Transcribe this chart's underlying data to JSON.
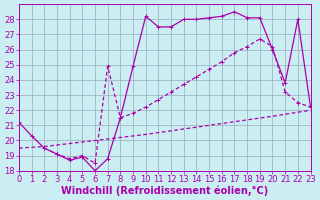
{
  "bg_color": "#cbeef3",
  "line_color": "#aa00aa",
  "grid_color": "#99aabb",
  "xlabel": "Windchill (Refroidissement éolien,°C)",
  "xlim": [
    0,
    23
  ],
  "ylim": [
    18,
    29
  ],
  "yticks": [
    18,
    19,
    20,
    21,
    22,
    23,
    24,
    25,
    26,
    27,
    28
  ],
  "xticks": [
    0,
    1,
    2,
    3,
    4,
    5,
    6,
    7,
    8,
    9,
    10,
    11,
    12,
    13,
    14,
    15,
    16,
    17,
    18,
    19,
    20,
    21,
    22,
    23
  ],
  "line1_x": [
    0,
    1,
    2,
    3,
    4,
    5,
    6,
    7,
    8,
    9,
    10,
    11,
    12,
    13,
    14,
    15,
    16,
    17,
    18,
    19,
    20,
    21,
    22,
    23
  ],
  "line1_y": [
    21.2,
    20.3,
    19.5,
    19.1,
    18.7,
    18.9,
    18.0,
    18.8,
    21.5,
    24.9,
    28.2,
    27.5,
    27.5,
    28.0,
    28.0,
    28.1,
    28.2,
    28.5,
    28.1,
    28.1,
    26.0,
    23.8,
    28.0,
    22.2
  ],
  "line2_x": [
    2,
    3,
    4,
    5,
    6,
    7,
    8,
    9,
    10,
    11,
    12,
    13,
    14,
    15,
    16,
    17,
    18,
    19,
    20,
    21,
    22,
    23
  ],
  "line2_y": [
    19.5,
    19.1,
    18.8,
    19.0,
    18.5,
    24.9,
    21.5,
    21.8,
    22.2,
    22.7,
    23.2,
    23.7,
    24.2,
    24.7,
    25.2,
    25.8,
    26.2,
    26.7,
    26.2,
    23.2,
    22.5,
    22.2
  ],
  "line3_x": [
    0,
    2,
    5,
    10,
    15,
    20,
    23
  ],
  "line3_y": [
    19.5,
    19.6,
    19.9,
    20.4,
    21.0,
    21.6,
    22.0
  ],
  "xlabel_fontsize": 7,
  "tick_fontsize": 6,
  "linewidth": 0.9,
  "marker_size": 3.5
}
